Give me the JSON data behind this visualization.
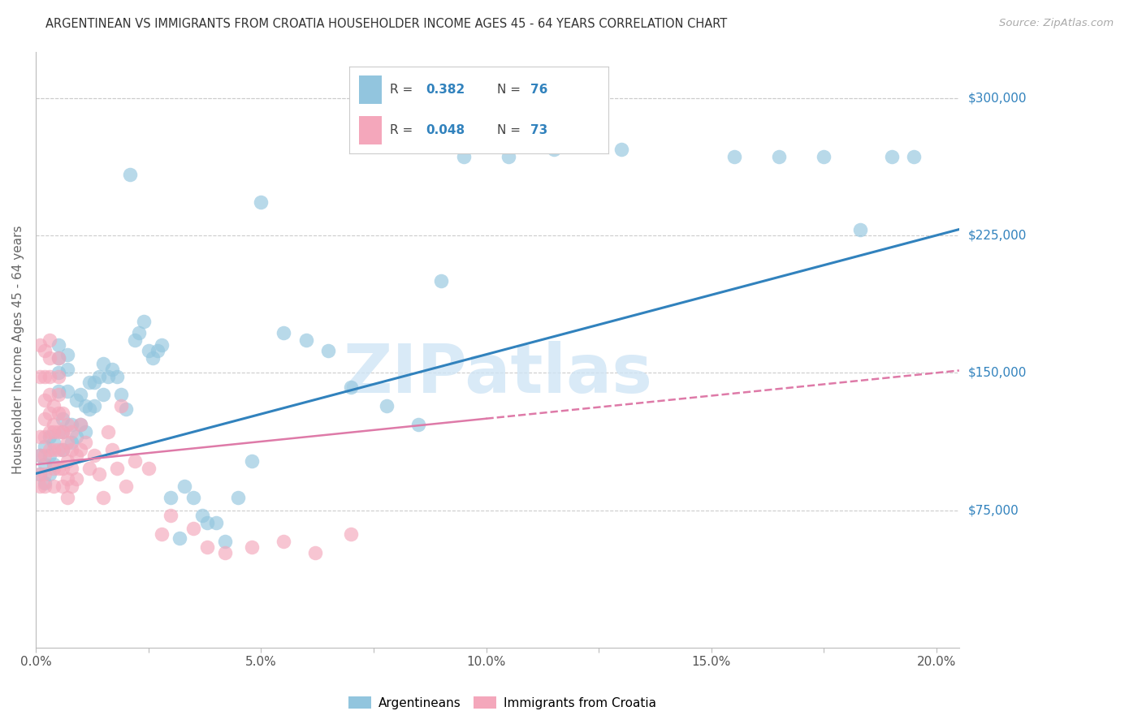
{
  "title": "ARGENTINEAN VS IMMIGRANTS FROM CROATIA HOUSEHOLDER INCOME AGES 45 - 64 YEARS CORRELATION CHART",
  "source": "Source: ZipAtlas.com",
  "ylabel": "Householder Income Ages 45 - 64 years",
  "xlim": [
    0.0,
    0.205
  ],
  "ylim": [
    0,
    325000
  ],
  "ytick_values": [
    75000,
    150000,
    225000,
    300000
  ],
  "ytick_labels": [
    "$75,000",
    "$150,000",
    "$225,000",
    "$300,000"
  ],
  "argentinean_R": 0.382,
  "argentinean_N": 76,
  "croatia_R": 0.048,
  "croatia_N": 73,
  "blue_scatter_color": "#92c5de",
  "pink_scatter_color": "#f4a7bb",
  "blue_line_color": "#3182bd",
  "pink_line_color": "#de7aa8",
  "legend_value_color": "#3182bd",
  "watermark": "ZIPatlas",
  "watermark_color": "#d0e5f5",
  "blue_intercept": 95000,
  "blue_slope": 650000,
  "pink_intercept": 100000,
  "pink_slope": 250000,
  "argentinean_x": [
    0.001,
    0.001,
    0.002,
    0.002,
    0.002,
    0.003,
    0.003,
    0.003,
    0.004,
    0.004,
    0.005,
    0.005,
    0.005,
    0.005,
    0.006,
    0.006,
    0.006,
    0.007,
    0.007,
    0.007,
    0.008,
    0.008,
    0.009,
    0.009,
    0.01,
    0.01,
    0.011,
    0.011,
    0.012,
    0.012,
    0.013,
    0.013,
    0.014,
    0.015,
    0.015,
    0.016,
    0.017,
    0.018,
    0.019,
    0.02,
    0.021,
    0.022,
    0.023,
    0.024,
    0.025,
    0.026,
    0.027,
    0.028,
    0.03,
    0.032,
    0.033,
    0.035,
    0.037,
    0.038,
    0.04,
    0.042,
    0.045,
    0.048,
    0.05,
    0.055,
    0.06,
    0.065,
    0.07,
    0.078,
    0.085,
    0.09,
    0.095,
    0.105,
    0.115,
    0.13,
    0.155,
    0.165,
    0.175,
    0.183,
    0.19,
    0.195
  ],
  "argentinean_y": [
    105000,
    95000,
    110000,
    100000,
    90000,
    115000,
    105000,
    95000,
    112000,
    100000,
    165000,
    158000,
    150000,
    140000,
    125000,
    118000,
    108000,
    160000,
    152000,
    140000,
    122000,
    112000,
    135000,
    115000,
    138000,
    122000,
    132000,
    118000,
    145000,
    130000,
    145000,
    132000,
    148000,
    138000,
    155000,
    148000,
    152000,
    148000,
    138000,
    130000,
    258000,
    168000,
    172000,
    178000,
    162000,
    158000,
    162000,
    165000,
    82000,
    60000,
    88000,
    82000,
    72000,
    68000,
    68000,
    58000,
    82000,
    102000,
    243000,
    172000,
    168000,
    162000,
    142000,
    132000,
    122000,
    200000,
    268000,
    268000,
    272000,
    272000,
    268000,
    268000,
    268000,
    228000,
    268000,
    268000
  ],
  "croatia_x": [
    0.001,
    0.001,
    0.001,
    0.001,
    0.001,
    0.001,
    0.002,
    0.002,
    0.002,
    0.002,
    0.002,
    0.002,
    0.002,
    0.002,
    0.003,
    0.003,
    0.003,
    0.003,
    0.003,
    0.003,
    0.003,
    0.004,
    0.004,
    0.004,
    0.004,
    0.004,
    0.004,
    0.005,
    0.005,
    0.005,
    0.005,
    0.005,
    0.005,
    0.005,
    0.006,
    0.006,
    0.006,
    0.006,
    0.006,
    0.007,
    0.007,
    0.007,
    0.007,
    0.007,
    0.008,
    0.008,
    0.008,
    0.008,
    0.009,
    0.009,
    0.01,
    0.01,
    0.011,
    0.012,
    0.013,
    0.014,
    0.015,
    0.016,
    0.017,
    0.018,
    0.019,
    0.02,
    0.022,
    0.025,
    0.028,
    0.03,
    0.035,
    0.038,
    0.042,
    0.048,
    0.055,
    0.062,
    0.07
  ],
  "croatia_y": [
    115000,
    105000,
    165000,
    148000,
    95000,
    88000,
    162000,
    148000,
    135000,
    125000,
    115000,
    105000,
    95000,
    88000,
    168000,
    158000,
    148000,
    138000,
    128000,
    118000,
    108000,
    132000,
    122000,
    118000,
    108000,
    98000,
    88000,
    158000,
    148000,
    138000,
    128000,
    118000,
    108000,
    98000,
    128000,
    118000,
    108000,
    98000,
    88000,
    122000,
    112000,
    102000,
    92000,
    82000,
    118000,
    108000,
    98000,
    88000,
    105000,
    92000,
    122000,
    108000,
    112000,
    98000,
    105000,
    95000,
    82000,
    118000,
    108000,
    98000,
    132000,
    88000,
    102000,
    98000,
    62000,
    72000,
    65000,
    55000,
    52000,
    55000,
    58000,
    52000,
    62000
  ]
}
